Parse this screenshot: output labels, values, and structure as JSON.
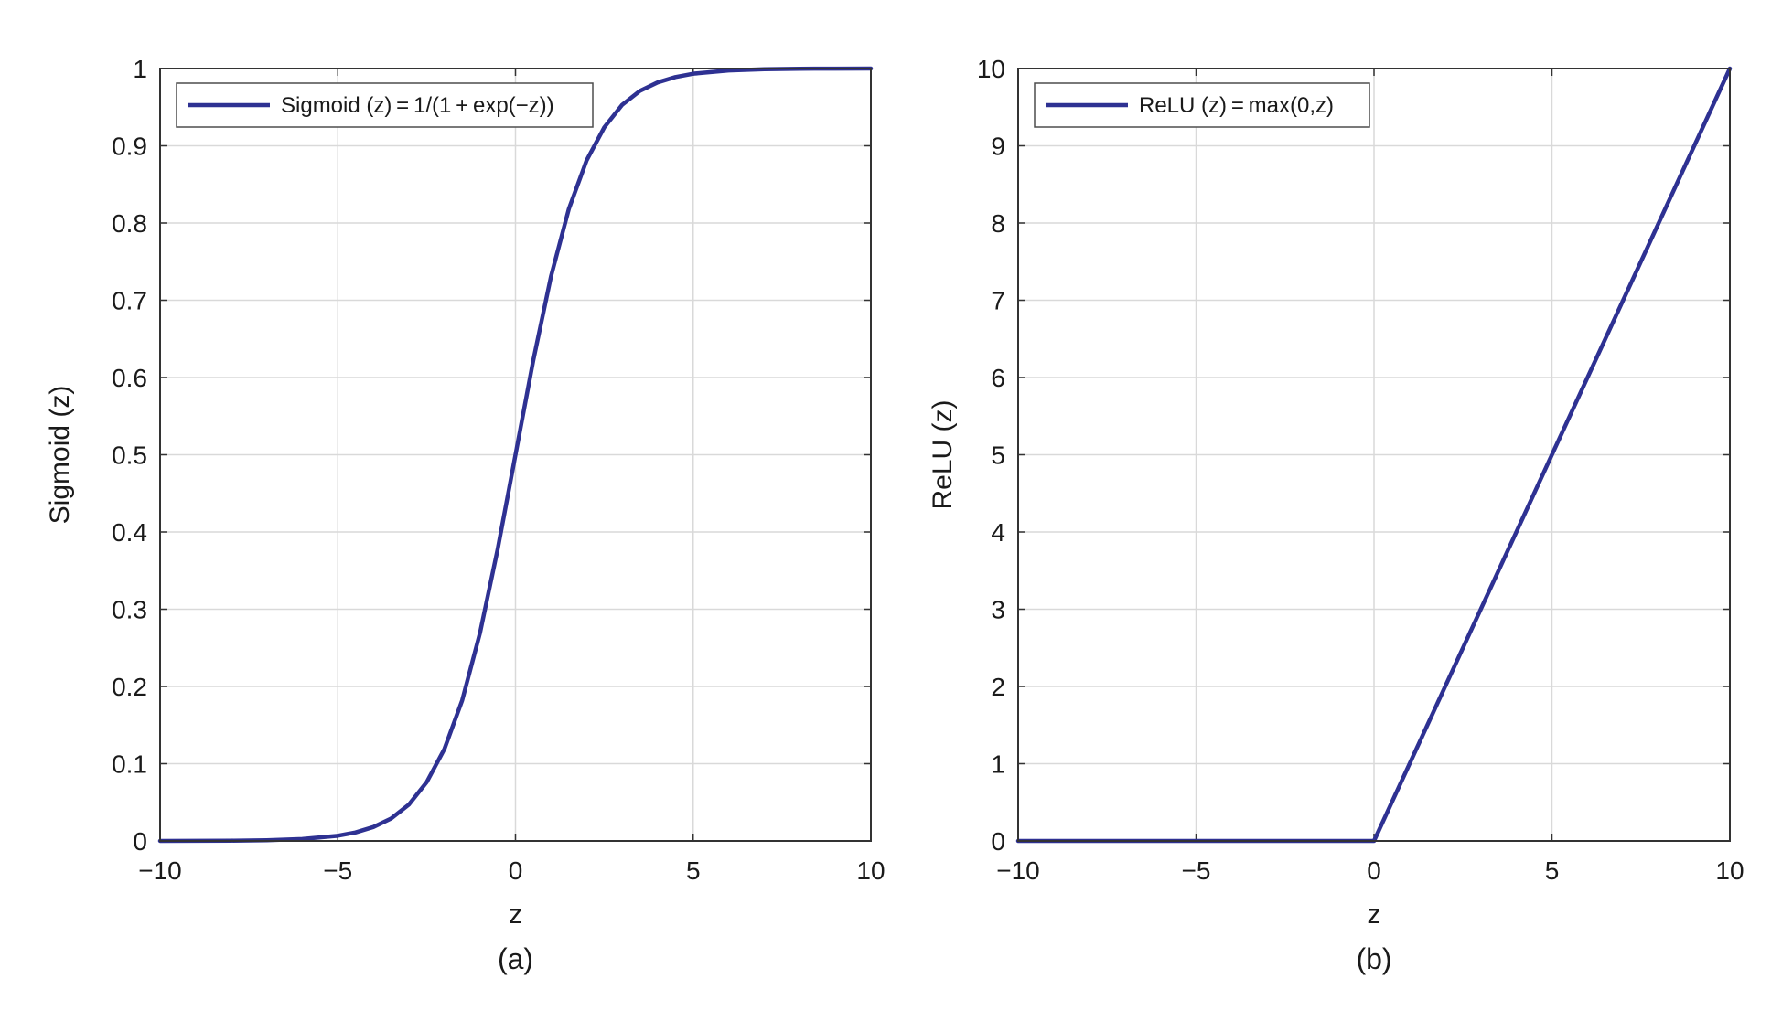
{
  "chart_data": [
    {
      "type": "line",
      "caption": "(a)",
      "xlabel": "z",
      "ylabel": "Sigmoid (z)",
      "xlim": [
        -10,
        10
      ],
      "ylim": [
        0,
        1
      ],
      "xticks": [
        -10,
        -5,
        0,
        5,
        10
      ],
      "xtick_labels": [
        "−10",
        "−5",
        "0",
        "5",
        "10"
      ],
      "yticks": [
        0,
        0.1,
        0.2,
        0.3,
        0.4,
        0.5,
        0.6,
        0.7,
        0.8,
        0.9,
        1
      ],
      "ytick_labels": [
        "0",
        "0.1",
        "0.2",
        "0.3",
        "0.4",
        "0.5",
        "0.6",
        "0.7",
        "0.8",
        "0.9",
        "1"
      ],
      "grid": true,
      "legend_position": "top-left",
      "series": [
        {
          "name": "Sigmoid (z) = 1/(1 + exp(−z))",
          "color": "#2e3192",
          "x": [
            -10,
            -9,
            -8,
            -7,
            -6,
            -5,
            -4.5,
            -4,
            -3.5,
            -3,
            -2.5,
            -2,
            -1.5,
            -1,
            -0.5,
            0,
            0.5,
            1,
            1.5,
            2,
            2.5,
            3,
            3.5,
            4,
            4.5,
            5,
            6,
            7,
            8,
            9,
            10
          ],
          "y": [
            5e-05,
            0.00012,
            0.00034,
            0.00091,
            0.00247,
            0.0067,
            0.011,
            0.018,
            0.029,
            0.047,
            0.076,
            0.119,
            0.182,
            0.269,
            0.378,
            0.5,
            0.622,
            0.731,
            0.818,
            0.881,
            0.924,
            0.953,
            0.971,
            0.982,
            0.989,
            0.9933,
            0.9975,
            0.9991,
            0.9997,
            0.9999,
            1.0
          ]
        }
      ]
    },
    {
      "type": "line",
      "caption": "(b)",
      "xlabel": "z",
      "ylabel": "ReLU (z)",
      "xlim": [
        -10,
        10
      ],
      "ylim": [
        0,
        10
      ],
      "xticks": [
        -10,
        -5,
        0,
        5,
        10
      ],
      "xtick_labels": [
        "−10",
        "−5",
        "0",
        "5",
        "10"
      ],
      "yticks": [
        0,
        1,
        2,
        3,
        4,
        5,
        6,
        7,
        8,
        9,
        10
      ],
      "ytick_labels": [
        "0",
        "1",
        "2",
        "3",
        "4",
        "5",
        "6",
        "7",
        "8",
        "9",
        "10"
      ],
      "grid": true,
      "legend_position": "top-left",
      "series": [
        {
          "name": "ReLU (z) = max(0,z)",
          "color": "#2e3192",
          "x": [
            -10,
            0,
            10
          ],
          "y": [
            0,
            0,
            10
          ]
        }
      ]
    }
  ]
}
